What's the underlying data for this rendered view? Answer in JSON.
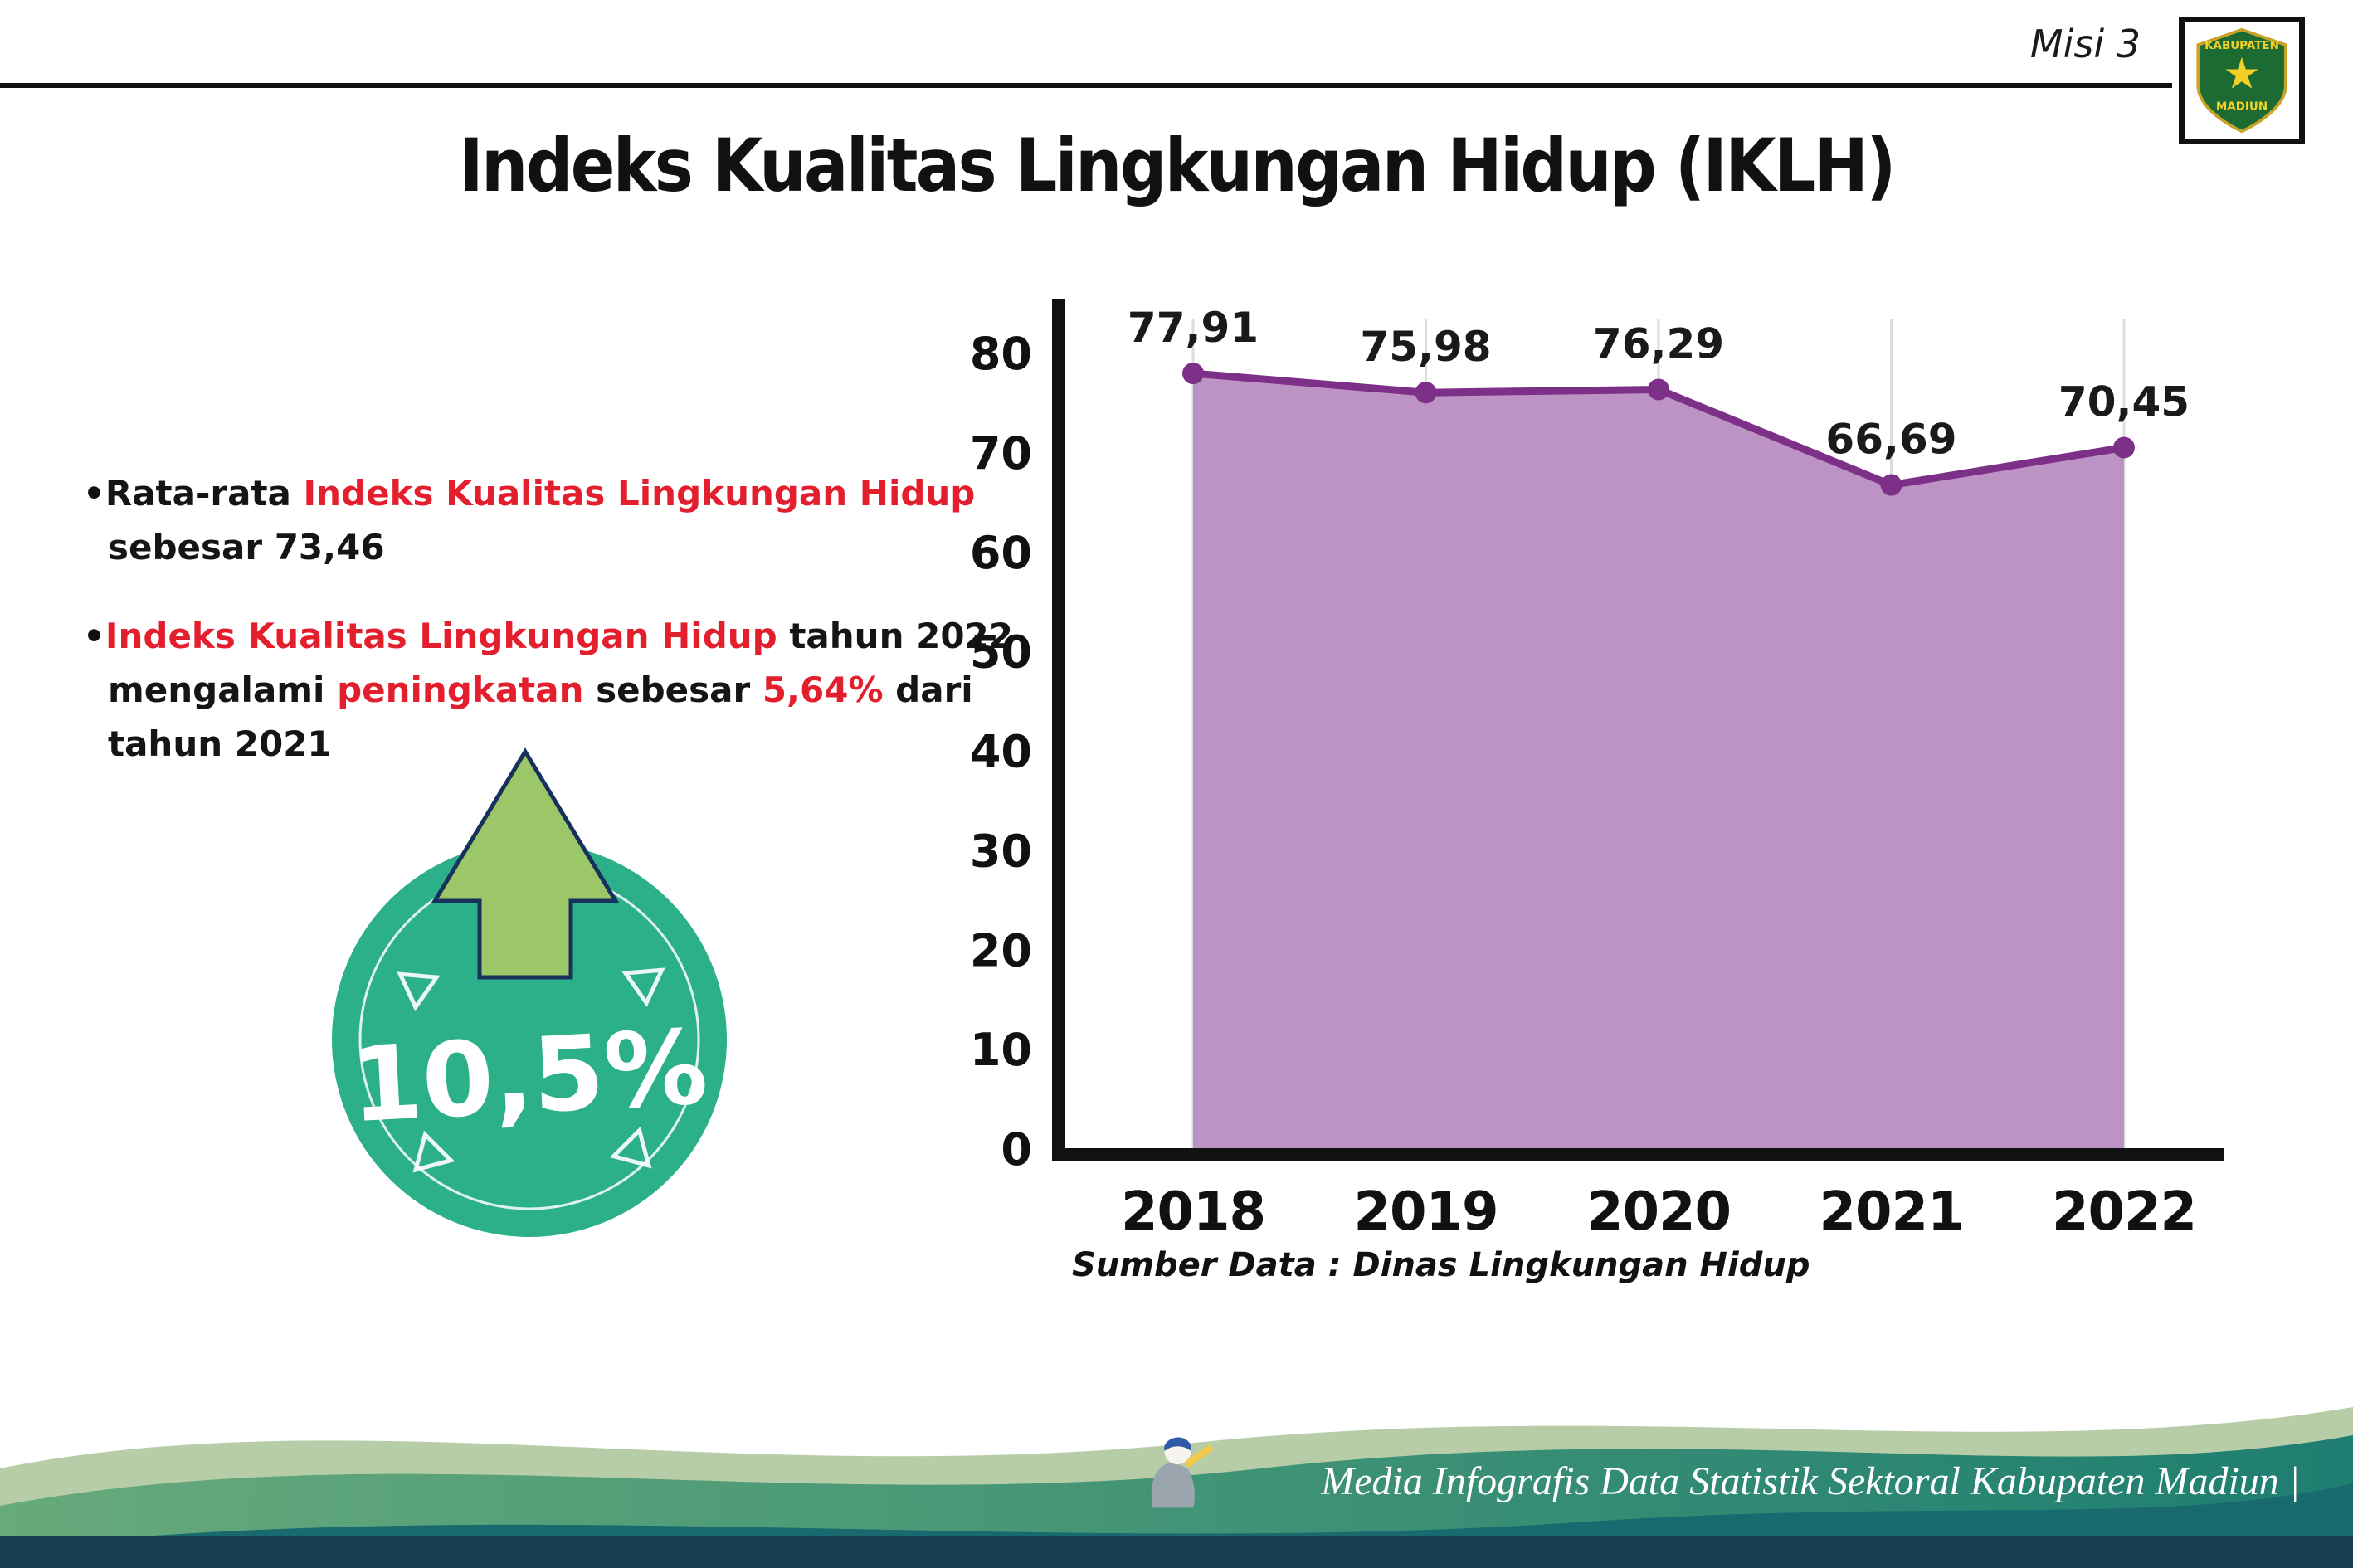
{
  "header": {
    "misi_label": "Misi 3",
    "title": "Indeks Kualitas Lingkungan Hidup (IKLH)",
    "logo": {
      "top": "KABUPATEN",
      "bottom": "MADIUN"
    }
  },
  "bullets": [
    {
      "segments": [
        {
          "text": "Rata-rata ",
          "red": false
        },
        {
          "text": "Indeks Kualitas Lingkungan Hidup",
          "red": true
        },
        {
          "text": " sebesar 73,46",
          "red": false
        }
      ]
    },
    {
      "segments": [
        {
          "text": "Indeks Kualitas Lingkungan Hidup",
          "red": true
        },
        {
          "text": " tahun 2022 mengalami ",
          "red": false
        },
        {
          "text": "peningkatan",
          "red": true
        },
        {
          "text": " sebesar ",
          "red": false
        },
        {
          "text": "5,64%",
          "red": true
        },
        {
          "text": " dari tahun 2021",
          "red": false
        }
      ]
    }
  ],
  "badge": {
    "value": "10,5%",
    "direction": "up"
  },
  "chart_data": {
    "type": "area",
    "title": "Indeks Kualitas Lingkungan Hidup (IKLH)",
    "categories": [
      "2018",
      "2019",
      "2020",
      "2021",
      "2022"
    ],
    "values": [
      77.91,
      75.98,
      76.29,
      66.69,
      70.45
    ],
    "value_labels": [
      "77,91",
      "75,98",
      "76,29",
      "66,69",
      "70,45"
    ],
    "ylim": [
      0,
      80
    ],
    "ytick_step": 10,
    "grid": "vertical-faint",
    "legend": "none",
    "line_color": "#7c3087",
    "point_color": "#7c3087",
    "fill_color": "#b98cc1",
    "source": "Sumber Data : Dinas Lingkungan Hidup"
  },
  "footer": {
    "credit": "Media Infografis Data Statistik Sektoral Kabupaten Madiun |"
  },
  "colors": {
    "red": "#e31e2d",
    "teal": "#2bb08a",
    "arrow-green": "#9cc768",
    "arrow-outline": "#16325c",
    "footer-sage": "#b6cda7",
    "footer-green-1": "#67aa7b",
    "footer-green-2": "#1e7e71",
    "footer-deep": "#186a6e",
    "footer-band": "#173f4f"
  }
}
